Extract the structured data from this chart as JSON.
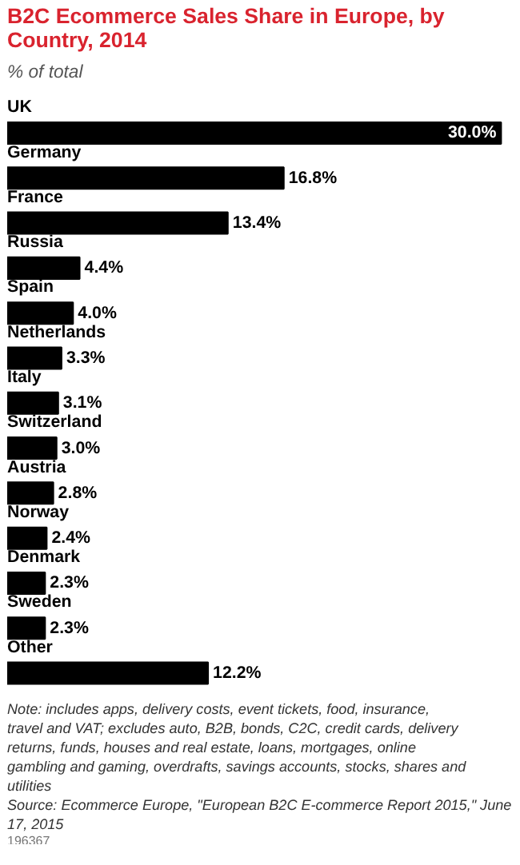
{
  "chart_data": {
    "type": "bar",
    "orientation": "horizontal",
    "title": "B2C Ecommerce Sales Share in Europe, by Country, 2014",
    "subtitle": "% of total",
    "categories": [
      "UK",
      "Germany",
      "France",
      "Russia",
      "Spain",
      "Netherlands",
      "Italy",
      "Switzerland",
      "Austria",
      "Norway",
      "Denmark",
      "Sweden",
      "Other"
    ],
    "values": [
      30.0,
      16.8,
      13.4,
      4.4,
      4.0,
      3.3,
      3.1,
      3.0,
      2.8,
      2.4,
      2.3,
      2.3,
      12.2
    ],
    "value_labels": [
      "30.0%",
      "16.8%",
      "13.4%",
      "4.4%",
      "4.0%",
      "3.3%",
      "3.1%",
      "3.0%",
      "2.8%",
      "2.4%",
      "2.3%",
      "2.3%",
      "12.2%"
    ],
    "color": "#000000",
    "annotations": [
      "Note: includes apps, delivery costs, event tickets, food, insurance, travel and VAT; excludes auto, B2B, bonds, C2C, credit cards, delivery returns, funds, houses and real estate, loans, mortgages, online gambling and gaming, overdrafts, savings accounts, stocks, shares and utilities",
      "Source: Ecommerce Europe, \"European B2C E-commerce Report 2015,\" June 17, 2015",
      "196367"
    ]
  }
}
